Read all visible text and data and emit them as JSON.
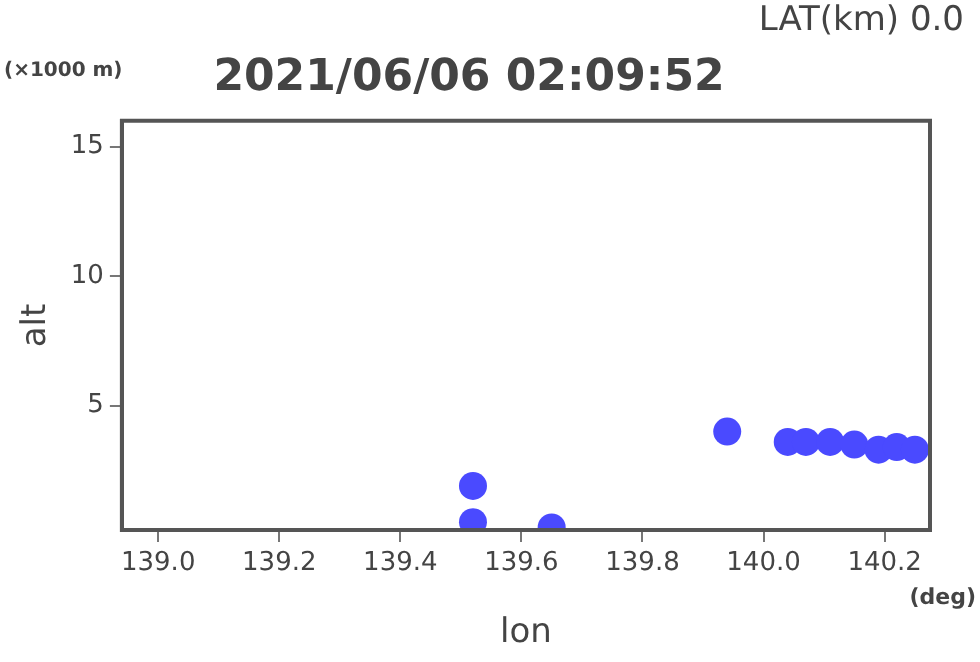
{
  "chart_data": {
    "type": "scatter",
    "title": "2021/06/06 02:09:52",
    "xlabel": "lon",
    "ylabel": "alt",
    "annotations": [
      "LAT(km) 0.0",
      "(×1000 m)",
      "(deg)"
    ],
    "x": [
      139.52,
      139.52,
      139.65,
      139.94,
      140.04,
      140.07,
      140.11,
      140.15,
      140.19,
      140.22,
      140.25
    ],
    "values": [
      1.9,
      0.5,
      0.3,
      4.0,
      3.6,
      3.6,
      3.6,
      3.5,
      3.3,
      3.4,
      3.3
    ],
    "color": "#4a4aff",
    "marker": "circle",
    "xlim": [
      138.94,
      140.275
    ],
    "ylim": [
      0.2,
      16
    ],
    "xticks": [
      {
        "value": 139.0,
        "label": "139.0"
      },
      {
        "value": 139.2,
        "label": "139.2"
      },
      {
        "value": 139.4,
        "label": "139.4"
      },
      {
        "value": 139.6,
        "label": "139.6"
      },
      {
        "value": 139.8,
        "label": "139.8"
      },
      {
        "value": 140.0,
        "label": "140.0"
      },
      {
        "value": 140.2,
        "label": "140.2"
      }
    ],
    "yticks": [
      5,
      10,
      15
    ],
    "grid": false,
    "legend": false
  }
}
